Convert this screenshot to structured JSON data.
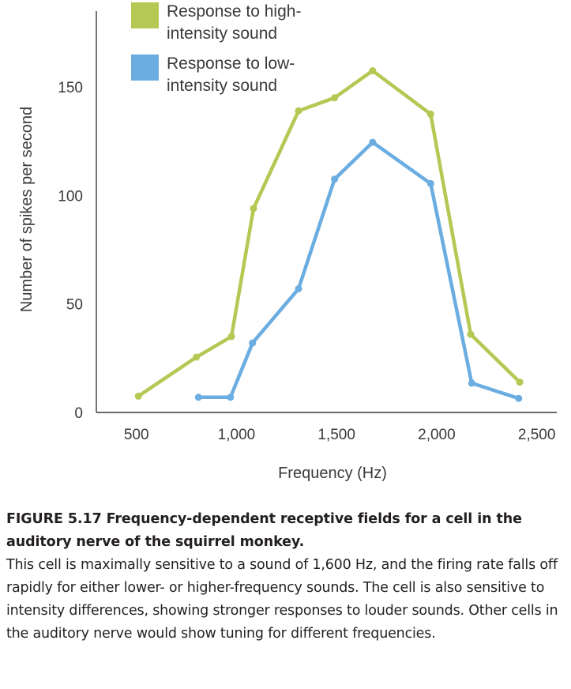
{
  "chart_data": {
    "type": "line",
    "xlabel": "Frequency (Hz)",
    "ylabel": "Number of spikes per second",
    "xlim": [
      300,
      2600
    ],
    "ylim": [
      0,
      185
    ],
    "xticks": [
      500,
      1000,
      1500,
      2000,
      2500
    ],
    "xtick_labels": [
      "500",
      "1,000",
      "1,500",
      "2,000",
      "2,500"
    ],
    "yticks": [
      0,
      50,
      100,
      150
    ],
    "ytick_labels": [
      "0",
      "50",
      "100",
      "150"
    ],
    "legend_position": "top-left",
    "series": [
      {
        "name": "Response to high-intensity sound",
        "legend_lines": [
          "Response to high-",
          "intensity sound"
        ],
        "color": "#b5c854",
        "x": [
          510,
          800,
          975,
          1085,
          1310,
          1490,
          1680,
          1970,
          2170,
          2415
        ],
        "y": [
          7.5,
          25.5,
          35,
          94,
          139,
          145,
          157.5,
          137.5,
          36,
          14
        ]
      },
      {
        "name": "Response to low-intensity sound",
        "legend_lines": [
          "Response to low-",
          "intensity sound"
        ],
        "color": "#6bade0",
        "x": [
          810,
          970,
          1080,
          1310,
          1490,
          1680,
          1970,
          2175,
          2410
        ],
        "y": [
          7,
          7,
          32,
          57,
          107.5,
          124.5,
          105.5,
          13.5,
          6.5
        ]
      }
    ]
  },
  "caption": {
    "title": "FIGURE 5.17  Frequency-dependent receptive fields for a cell in the auditory nerve of the squirrel monkey.",
    "body": "This cell is maximally sensitive to a sound of 1,600 Hz, and the firing rate falls off rapidly for either lower- or higher-frequency sounds. The cell is also sensitive to intensity differences, showing stronger responses to louder sounds. Other cells in the auditory nerve would show tuning for different frequencies."
  }
}
